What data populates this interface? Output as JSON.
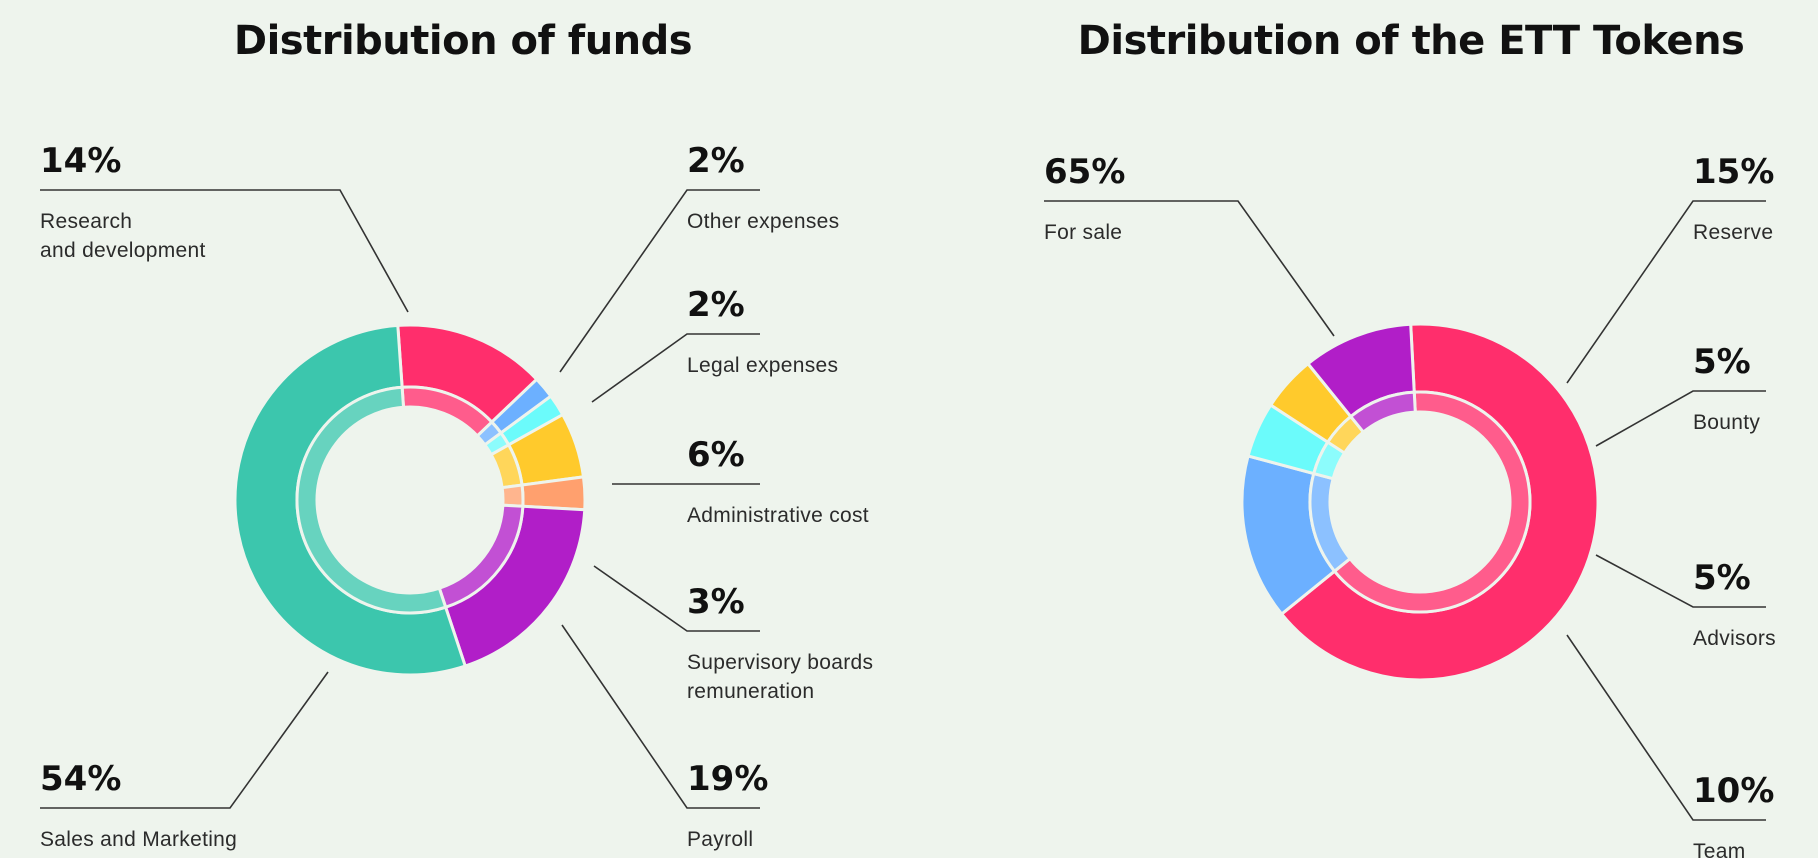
{
  "chart_data": [
    {
      "type": "pie",
      "title": "Distribution of funds",
      "slices": [
        {
          "label": "Research and development",
          "label_lines": [
            "Research",
            "and development"
          ],
          "value": 14,
          "value_label": "14%",
          "color": "#ff2e6c"
        },
        {
          "label": "Other expenses",
          "label_lines": [
            "Other expenses"
          ],
          "value": 2,
          "value_label": "2%",
          "color": "#6cb0ff"
        },
        {
          "label": "Legal expenses",
          "label_lines": [
            "Legal expenses"
          ],
          "value": 2,
          "value_label": "2%",
          "color": "#6bfbfb"
        },
        {
          "label": "Administrative cost",
          "label_lines": [
            "Administrative cost"
          ],
          "value": 6,
          "value_label": "6%",
          "color": "#ffca2c"
        },
        {
          "label": "Supervisory boards remuneration",
          "label_lines": [
            "Supervisory boards",
            "remuneration"
          ],
          "value": 3,
          "value_label": "3%",
          "color": "#ffa06e"
        },
        {
          "label": "Payroll",
          "label_lines": [
            "Payroll"
          ],
          "value": 19,
          "value_label": "19%",
          "color": "#b11ec8"
        },
        {
          "label": "Sales and Marketing",
          "label_lines": [
            "Sales and Marketing"
          ],
          "value": 54,
          "value_label": "54%",
          "color": "#3cc6ad"
        }
      ]
    },
    {
      "type": "pie",
      "title": "Distribution of the ETT Tokens",
      "slices": [
        {
          "label": "For sale",
          "label_lines": [
            "For sale"
          ],
          "value": 65,
          "value_label": "65%",
          "color": "#ff2e6c"
        },
        {
          "label": "Reserve",
          "label_lines": [
            "Reserve"
          ],
          "value": 15,
          "value_label": "15%",
          "color": "#6cb0ff"
        },
        {
          "label": "Bounty",
          "label_lines": [
            "Bounty"
          ],
          "value": 5,
          "value_label": "5%",
          "color": "#6bfbfb"
        },
        {
          "label": "Advisors",
          "label_lines": [
            "Advisors"
          ],
          "value": 5,
          "value_label": "5%",
          "color": "#ffca2c"
        },
        {
          "label": "Team",
          "label_lines": [
            "Team"
          ],
          "value": 10,
          "value_label": "10%",
          "color": "#b11ec8"
        }
      ]
    }
  ]
}
